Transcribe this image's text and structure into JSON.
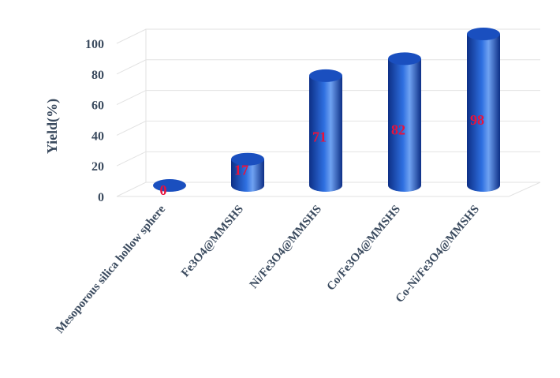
{
  "chart_data": {
    "type": "bar",
    "style": "3d-cylinder",
    "categories": [
      "Mesoporous silica hollow sphere",
      "Fe3O4@MMSHS",
      "Ni/Fe3O4@MMSHS",
      "Co/Fe3O4@MMSHS",
      "Co-Ni/Fe3O4@MMSHS"
    ],
    "values": [
      0,
      17,
      71,
      82,
      98
    ],
    "data_labels": [
      "0",
      "17",
      "71",
      "82",
      "98"
    ],
    "ylabel": "Yield(%)",
    "ylim": [
      0,
      100
    ],
    "yticks": [
      "0",
      "20",
      "40",
      "60",
      "80",
      "100"
    ],
    "grid": true,
    "legend": "none",
    "colors": {
      "bar_dark": "#0d2f86",
      "bar_mid": "#2e6fe0",
      "bar_light": "#6fa2f2",
      "bar_top": "#1a4fbf",
      "data_label": "#e8123c",
      "text": "#3a4a5e",
      "grid": "#e2e2e2"
    }
  }
}
